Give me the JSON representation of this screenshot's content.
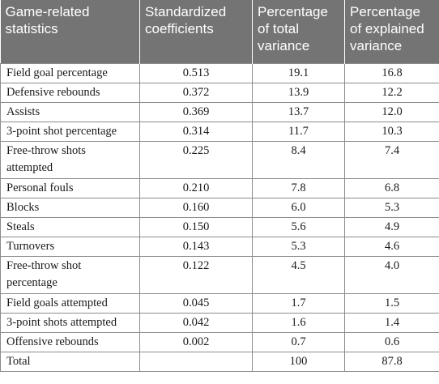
{
  "table": {
    "headers": [
      "Game-related statistics",
      "Standardized coefficients",
      "Percentage of total variance",
      "Percentage of explained variance"
    ],
    "rows": [
      {
        "stat": "Field goal percentage",
        "coef": "0.513",
        "total": "19.1",
        "explained": "16.8"
      },
      {
        "stat": "Defensive rebounds",
        "coef": "0.372",
        "total": "13.9",
        "explained": "12.2"
      },
      {
        "stat": "Assists",
        "coef": "0.369",
        "total": "13.7",
        "explained": "12.0"
      },
      {
        "stat": "3-point shot percentage",
        "coef": "0.314",
        "total": "11.7",
        "explained": "10.3"
      },
      {
        "stat": "Free-throw shots attempted",
        "coef": "0.225",
        "total": "8.4",
        "explained": "7.4"
      },
      {
        "stat": "Personal fouls",
        "coef": "0.210",
        "total": "7.8",
        "explained": "6.8"
      },
      {
        "stat": "Blocks",
        "coef": "0.160",
        "total": "6.0",
        "explained": "5.3"
      },
      {
        "stat": "Steals",
        "coef": "0.150",
        "total": "5.6",
        "explained": "4.9"
      },
      {
        "stat": "Turnovers",
        "coef": "0.143",
        "total": "5.3",
        "explained": "4.6"
      },
      {
        "stat": "Free-throw shot percentage",
        "coef": "0.122",
        "total": "4.5",
        "explained": "4.0"
      },
      {
        "stat": "Field goals attempted",
        "coef": "0.045",
        "total": "1.7",
        "explained": "1.5"
      },
      {
        "stat": "3-point shots attempted",
        "coef": "0.042",
        "total": "1.6",
        "explained": "1.4"
      },
      {
        "stat": "Offensive rebounds",
        "coef": "0.002",
        "total": "0.7",
        "explained": "0.6"
      },
      {
        "stat": "Total",
        "coef": "",
        "total": "100",
        "explained": "87.8"
      }
    ]
  },
  "colors": {
    "header_background": "#747474",
    "header_text": "#ffffff",
    "border": "#8c8c8c"
  }
}
